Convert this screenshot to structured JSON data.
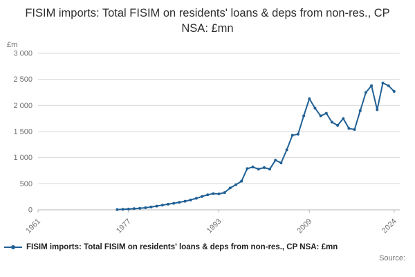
{
  "title": "FISIM imports: Total FISIM on residents' loans & deps from non-res., CP NSA: £mn",
  "legend": {
    "label": "FISIM imports: Total FISIM on residents' loans & deps from non-res., CP NSA: £mn"
  },
  "source_label": "Source:",
  "colors": {
    "line": "#206095",
    "grid": "#d9d9d9",
    "axis": "#b3b3b3",
    "tick_text": "#707070"
  },
  "chart_data": {
    "type": "line",
    "title": "FISIM imports: Total FISIM on residents' loans & deps from non-res., CP NSA: £mn",
    "xlabel": "",
    "ylabel": "£m",
    "xlim": [
      1961,
      2025
    ],
    "ylim": [
      0,
      3000
    ],
    "grid": "horizontal",
    "legend_position": "bottom",
    "series_name": "FISIM imports: Total FISIM on residents' loans & deps from non-res., CP NSA: £mn",
    "x_ticks": [
      1961,
      1977,
      1993,
      2009,
      2024
    ],
    "y_ticks": [
      0,
      500,
      1000,
      1500,
      2000,
      2500,
      3000
    ],
    "y_tick_labels": [
      "0",
      "500",
      "1 000",
      "1 500",
      "2 000",
      "2 500",
      "3 000"
    ],
    "years": [
      1975,
      1976,
      1977,
      1978,
      1979,
      1980,
      1981,
      1982,
      1983,
      1984,
      1985,
      1986,
      1987,
      1988,
      1989,
      1990,
      1991,
      1992,
      1993,
      1994,
      1995,
      1996,
      1997,
      1998,
      1999,
      2000,
      2001,
      2002,
      2003,
      2004,
      2005,
      2006,
      2007,
      2008,
      2009,
      2010,
      2011,
      2012,
      2013,
      2014,
      2015,
      2016,
      2017,
      2018,
      2019,
      2020,
      2021,
      2022,
      2023,
      2024
    ],
    "values": [
      5,
      10,
      15,
      22,
      30,
      40,
      55,
      72,
      90,
      108,
      125,
      145,
      165,
      190,
      220,
      255,
      290,
      310,
      305,
      330,
      420,
      480,
      550,
      790,
      820,
      780,
      810,
      780,
      950,
      900,
      1150,
      1430,
      1450,
      1800,
      2130,
      1950,
      1800,
      1850,
      1680,
      1620,
      1750,
      1560,
      1540,
      1900,
      2250,
      2380,
      1920,
      2430,
      2380,
      2270
    ]
  }
}
